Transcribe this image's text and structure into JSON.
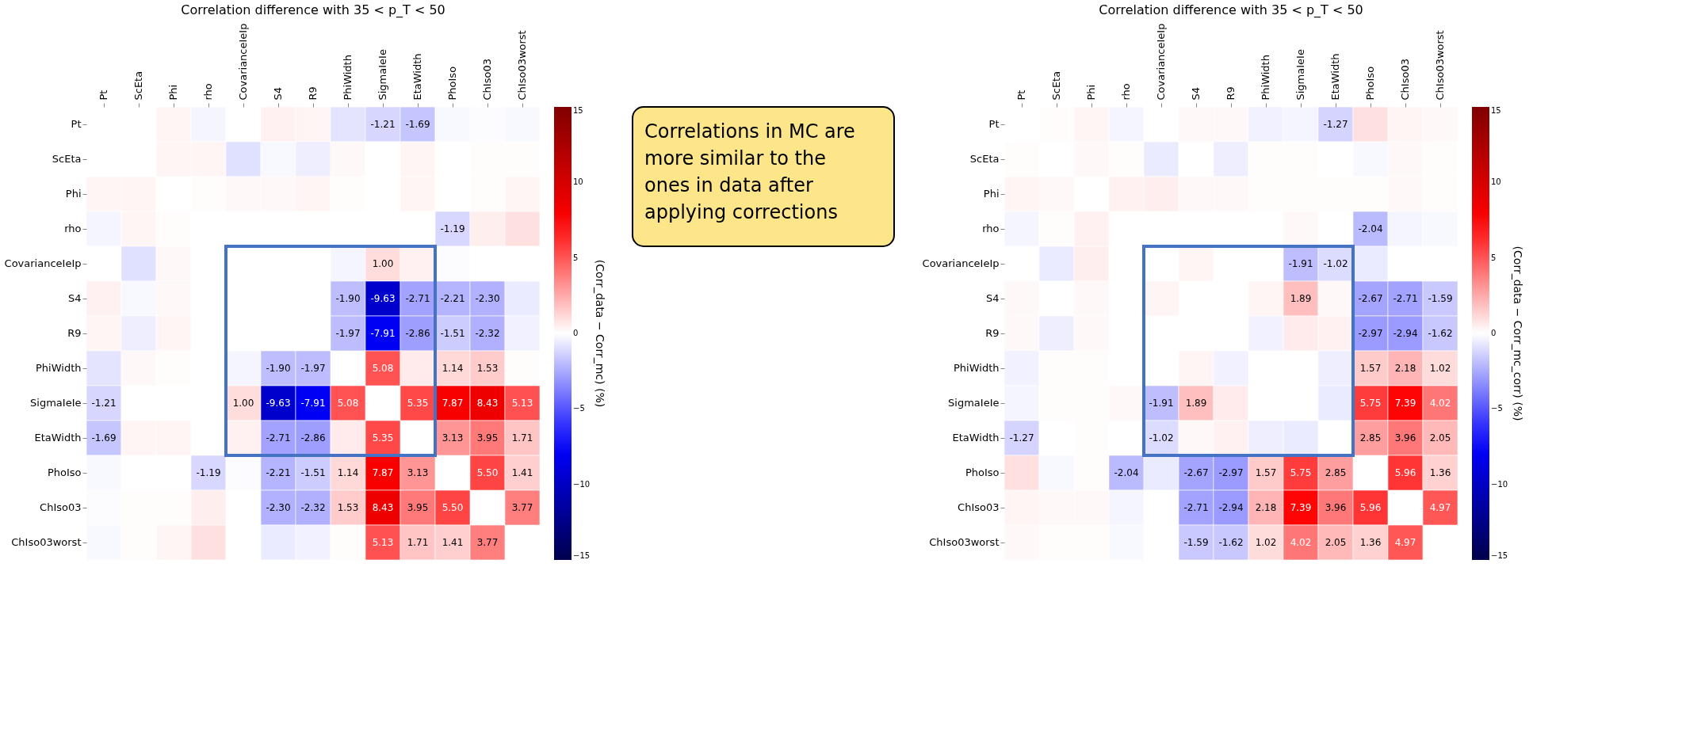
{
  "chart_data": [
    {
      "type": "heatmap",
      "title": "Correlation difference with 35 < p_T < 50",
      "clabel": "(Corr_data − Corr_mc) (%)",
      "categories": [
        "Pt",
        "ScEta",
        "Phi",
        "rho",
        "CovarianceIeIp",
        "S4",
        "R9",
        "PhiWidth",
        "SigmaIeIe",
        "EtaWidth",
        "PhoIso",
        "ChIso03",
        "ChIso03worst"
      ],
      "y_categories": [
        "Pt",
        "ScEta",
        "Phi",
        "rho",
        "CovarianceIeIp",
        "S4",
        "R9",
        "PhiWidth",
        "SigmaIeIe",
        "EtaWidth",
        "PhoIso",
        "ChIso03",
        "ChIso03worst"
      ],
      "cells": [
        [
          null,
          0,
          0.3,
          -0.3,
          0,
          0.4,
          0.3,
          -0.8,
          -1.21,
          -1.69,
          -0.2,
          -0.1,
          -0.2
        ],
        [
          0,
          null,
          0.3,
          0.3,
          -0.9,
          -0.2,
          -0.5,
          0.2,
          0,
          0.3,
          0,
          0.1,
          0.1
        ],
        [
          0.3,
          0.3,
          null,
          0.1,
          0.2,
          0.2,
          0.3,
          0.1,
          0,
          0.3,
          0,
          0.1,
          0.3
        ],
        [
          -0.3,
          0.3,
          0.1,
          null,
          0,
          0,
          0,
          0,
          0,
          0,
          -1.19,
          0.5,
          0.9
        ],
        [
          0,
          -0.9,
          0.2,
          0,
          null,
          0,
          0,
          -0.3,
          1.0,
          0.4,
          -0.1,
          0,
          0
        ],
        [
          0.4,
          -0.2,
          0.2,
          0,
          0,
          null,
          0,
          -1.9,
          -9.63,
          -2.71,
          -2.21,
          -2.3,
          -0.6
        ],
        [
          0.3,
          -0.5,
          0.3,
          0,
          0,
          0,
          null,
          -1.97,
          -7.91,
          -2.86,
          -1.51,
          -2.32,
          -0.4
        ],
        [
          -0.8,
          0.2,
          0.1,
          0,
          -0.3,
          -1.9,
          -1.97,
          null,
          5.08,
          0.6,
          1.14,
          1.53,
          0.1
        ],
        [
          -1.21,
          0,
          0,
          0,
          1.0,
          -9.63,
          -7.91,
          5.08,
          null,
          5.35,
          7.87,
          8.43,
          5.13
        ],
        [
          -1.69,
          0.3,
          0.3,
          0,
          0.4,
          -2.71,
          -2.86,
          0.6,
          5.35,
          null,
          3.13,
          3.95,
          1.71
        ],
        [
          -0.2,
          0,
          0,
          -1.19,
          -0.1,
          -2.21,
          -1.51,
          1.14,
          7.87,
          3.13,
          null,
          5.5,
          1.41
        ],
        [
          -0.1,
          0.1,
          0.1,
          0.5,
          0,
          -2.3,
          -2.32,
          1.53,
          8.43,
          3.95,
          5.5,
          null,
          3.77
        ],
        [
          -0.2,
          0.1,
          0.3,
          0.9,
          0,
          -0.6,
          -0.4,
          0.1,
          5.13,
          1.71,
          1.41,
          3.77,
          null
        ]
      ],
      "cell_labels": [
        [
          null,
          null,
          null,
          null,
          null,
          null,
          null,
          null,
          "-1.21",
          "-1.69",
          null,
          null,
          null
        ],
        [
          null,
          null,
          null,
          null,
          null,
          null,
          null,
          null,
          null,
          null,
          null,
          null,
          null
        ],
        [
          null,
          null,
          null,
          null,
          null,
          null,
          null,
          null,
          null,
          null,
          null,
          null,
          null
        ],
        [
          null,
          null,
          null,
          null,
          null,
          null,
          null,
          null,
          null,
          null,
          "-1.19",
          null,
          null
        ],
        [
          null,
          null,
          null,
          null,
          null,
          null,
          null,
          null,
          "1.00",
          null,
          null,
          null,
          null
        ],
        [
          null,
          null,
          null,
          null,
          null,
          null,
          null,
          "-1.90",
          "-9.63",
          "-2.71",
          "-2.21",
          "-2.30",
          null
        ],
        [
          null,
          null,
          null,
          null,
          null,
          null,
          null,
          "-1.97",
          "-7.91",
          "-2.86",
          "-1.51",
          "-2.32",
          null
        ],
        [
          null,
          null,
          null,
          null,
          null,
          "-1.90",
          "-1.97",
          null,
          "5.08",
          null,
          "1.14",
          "1.53",
          null
        ],
        [
          "-1.21",
          null,
          null,
          null,
          "1.00",
          "-9.63",
          "-7.91",
          "5.08",
          null,
          "5.35",
          "7.87",
          "8.43",
          "5.13"
        ],
        [
          "-1.69",
          null,
          null,
          null,
          null,
          "-2.71",
          "-2.86",
          null,
          "5.35",
          null,
          "3.13",
          "3.95",
          "1.71"
        ],
        [
          null,
          null,
          null,
          "-1.19",
          null,
          "-2.21",
          "-1.51",
          "1.14",
          "7.87",
          "3.13",
          null,
          "5.50",
          "1.41"
        ],
        [
          null,
          null,
          null,
          null,
          null,
          "-2.30",
          "-2.32",
          "1.53",
          "8.43",
          "3.95",
          "5.50",
          null,
          "3.77"
        ],
        [
          null,
          null,
          null,
          null,
          null,
          null,
          null,
          null,
          "5.13",
          "1.71",
          "1.41",
          "3.77",
          null
        ]
      ],
      "clim": [
        -15,
        15
      ],
      "cticks": [
        -15,
        -10,
        -5,
        0,
        5,
        10,
        15
      ],
      "annotations": [
        "Correlations in MC are more similar to the ones in data after applying corrections"
      ]
    },
    {
      "type": "heatmap",
      "title": "Correlation difference with 35 < p_T < 50",
      "clabel": "(Corr_data − Corr_mc_corr) (%)",
      "categories": [
        "Pt",
        "ScEta",
        "Phi",
        "rho",
        "CovarianceIeIp",
        "S4",
        "R9",
        "PhiWidth",
        "SigmaIeIe",
        "EtaWidth",
        "PhoIso",
        "ChIso03",
        "ChIso03worst"
      ],
      "y_categories": [
        "Pt",
        "ScEta",
        "Phi",
        "rho",
        "CovarianceIeIp",
        "S4",
        "R9",
        "PhiWidth",
        "SigmaIeIe",
        "EtaWidth",
        "PhoIso",
        "ChIso03",
        "ChIso03worst"
      ],
      "cells": [
        [
          null,
          0.1,
          0.3,
          -0.3,
          0,
          0.2,
          0.2,
          -0.4,
          -0.3,
          -1.27,
          0.9,
          0.3,
          0.2
        ],
        [
          0.1,
          null,
          0.2,
          0.1,
          -0.6,
          0,
          -0.5,
          0.1,
          0.1,
          0,
          -0.2,
          0.2,
          0.1
        ],
        [
          0.3,
          0.2,
          null,
          0.4,
          0.5,
          0.2,
          0.2,
          0.1,
          0.1,
          0.1,
          0.1,
          0.2,
          0.1
        ],
        [
          -0.3,
          0.1,
          0.4,
          null,
          0,
          0,
          0,
          0,
          0.2,
          0,
          -2.04,
          -0.3,
          -0.2
        ],
        [
          0,
          -0.6,
          0.5,
          0,
          null,
          0.3,
          0,
          0,
          -1.91,
          -1.02,
          -0.6,
          0,
          0
        ],
        [
          0.2,
          0,
          0.2,
          0,
          0.3,
          null,
          0,
          0.3,
          1.89,
          0.2,
          -2.67,
          -2.71,
          -1.59
        ],
        [
          0.2,
          -0.5,
          0.2,
          0,
          0,
          0,
          null,
          -0.4,
          0.6,
          0.4,
          -2.97,
          -2.94,
          -1.62
        ],
        [
          -0.4,
          0.1,
          0.1,
          0,
          0,
          0.3,
          -0.4,
          null,
          0,
          -0.5,
          1.57,
          2.18,
          1.02
        ],
        [
          -0.3,
          0.1,
          0.1,
          0.2,
          -1.91,
          1.89,
          0.6,
          0,
          null,
          -0.6,
          5.75,
          7.39,
          4.02
        ],
        [
          -1.27,
          0,
          0.1,
          0,
          -1.02,
          0.2,
          0.4,
          -0.5,
          -0.6,
          null,
          2.85,
          3.96,
          2.05
        ],
        [
          0.9,
          -0.2,
          0.1,
          -2.04,
          -0.6,
          -2.67,
          -2.97,
          1.57,
          5.75,
          2.85,
          null,
          5.96,
          1.36
        ],
        [
          0.3,
          0.2,
          0.2,
          -0.3,
          0,
          -2.71,
          -2.94,
          2.18,
          7.39,
          3.96,
          5.96,
          null,
          4.97
        ],
        [
          0.2,
          0.1,
          0.1,
          -0.2,
          0,
          -1.59,
          -1.62,
          1.02,
          4.02,
          2.05,
          1.36,
          4.97,
          null
        ]
      ],
      "cell_labels": [
        [
          null,
          null,
          null,
          null,
          null,
          null,
          null,
          null,
          null,
          "-1.27",
          null,
          null,
          null
        ],
        [
          null,
          null,
          null,
          null,
          null,
          null,
          null,
          null,
          null,
          null,
          null,
          null,
          null
        ],
        [
          null,
          null,
          null,
          null,
          null,
          null,
          null,
          null,
          null,
          null,
          null,
          null,
          null
        ],
        [
          null,
          null,
          null,
          null,
          null,
          null,
          null,
          null,
          null,
          null,
          "-2.04",
          null,
          null
        ],
        [
          null,
          null,
          null,
          null,
          null,
          null,
          null,
          null,
          "-1.91",
          "-1.02",
          null,
          null,
          null
        ],
        [
          null,
          null,
          null,
          null,
          null,
          null,
          null,
          null,
          "1.89",
          null,
          "-2.67",
          "-2.71",
          "-1.59"
        ],
        [
          null,
          null,
          null,
          null,
          null,
          null,
          null,
          null,
          null,
          null,
          "-2.97",
          "-2.94",
          "-1.62"
        ],
        [
          null,
          null,
          null,
          null,
          null,
          null,
          null,
          null,
          null,
          null,
          "1.57",
          "2.18",
          "1.02"
        ],
        [
          null,
          null,
          null,
          null,
          "-1.91",
          "1.89",
          null,
          null,
          null,
          null,
          "5.75",
          "7.39",
          "4.02"
        ],
        [
          "-1.27",
          null,
          null,
          null,
          "-1.02",
          null,
          null,
          null,
          null,
          null,
          "2.85",
          "3.96",
          "2.05"
        ],
        [
          null,
          null,
          null,
          "-2.04",
          null,
          "-2.67",
          "-2.97",
          "1.57",
          "5.75",
          "2.85",
          null,
          "5.96",
          "1.36"
        ],
        [
          null,
          null,
          null,
          null,
          null,
          "-2.71",
          "-2.94",
          "2.18",
          "7.39",
          "3.96",
          "5.96",
          null,
          "4.97"
        ],
        [
          null,
          null,
          null,
          null,
          null,
          "-1.59",
          "-1.62",
          "1.02",
          "4.02",
          "2.05",
          "1.36",
          "4.97",
          null
        ]
      ],
      "clim": [
        -15,
        15
      ],
      "cticks": [
        -15,
        -10,
        -5,
        0,
        5,
        10,
        15
      ]
    }
  ]
}
